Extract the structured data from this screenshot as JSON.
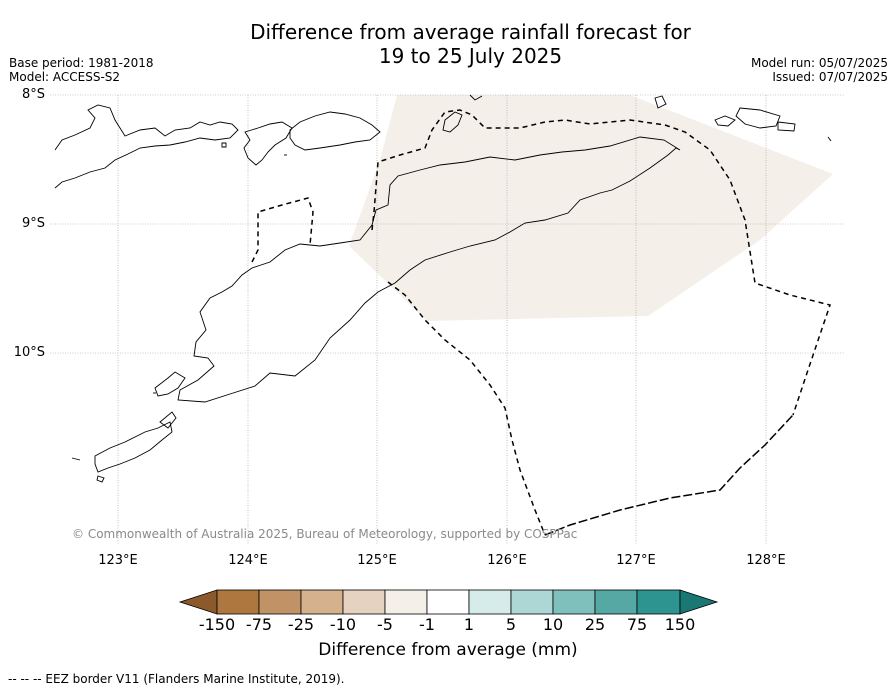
{
  "title": {
    "line1": "Difference from average rainfall forecast for",
    "line2": "19 to 25 July 2025"
  },
  "meta": {
    "base_period": "Base period: 1981-2018",
    "model": "Model: ACCESS-S2",
    "model_run": "Model run: 05/07/2025",
    "issued": "Issued: 07/07/2025"
  },
  "map": {
    "latitude_labels": [
      "8°S",
      "9°S",
      "10°S"
    ],
    "longitude_labels": [
      "123°E",
      "124°E",
      "125°E",
      "126°E",
      "127°E",
      "128°E"
    ],
    "anomaly_region_color": "#f5efea",
    "copyright": "© Commonwealth of Australia 2025, Bureau of Meteorology, supported by COSPPac"
  },
  "colorbar": {
    "title": "Difference from average (mm)",
    "labels": [
      "-150",
      "-75",
      "-25",
      "-10",
      "-5",
      "-1",
      "1",
      "5",
      "10",
      "25",
      "75",
      "150"
    ],
    "colors": [
      "#8c5a2a",
      "#ad773f",
      "#c29267",
      "#d5b18d",
      "#e6d2c1",
      "#f5efea",
      "#ffffff",
      "#d5ecea",
      "#acd7d4",
      "#80c0bc",
      "#56a8a5",
      "#2e9490",
      "#1a7874"
    ]
  },
  "footnote": {
    "eez": "--  --  -- EEZ border V11 (Flanders Marine Institute, 2019)."
  }
}
